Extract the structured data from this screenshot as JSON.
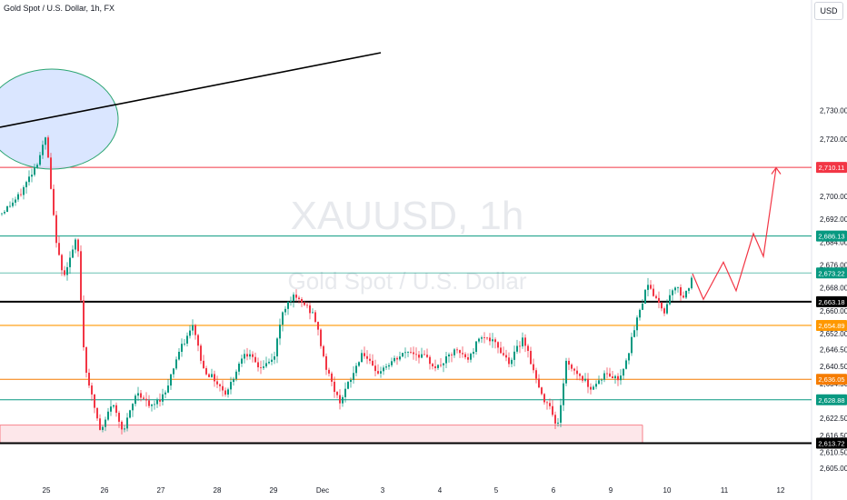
{
  "header": {
    "symbol_title": "Gold Spot / U.S. Dollar, 1h, FX",
    "currency": "USD"
  },
  "watermark": {
    "ticker": "XAUUSD, 1h",
    "name": "Gold Spot / U.S. Dollar"
  },
  "chart_data": {
    "type": "candlestick",
    "title": "Gold Spot / U.S. Dollar, 1h, FX",
    "y_axis_ticks": [
      2730,
      2720,
      2700,
      2692,
      2684,
      2676,
      2668,
      2660,
      2652,
      2646.5,
      2640.5,
      2634.5,
      2628.5,
      2622.5,
      2616.5,
      2610.5,
      2605
    ],
    "y_axis_tick_labels": [
      "2,730.00",
      "2,720.00",
      "2,700.00",
      "2,692.00",
      "2,684.00",
      "2,676.00",
      "2,668.00",
      "2,660.00",
      "2,652.00",
      "2,646.50",
      "2,640.50",
      "2,634.50",
      "2,628.50",
      "2,622.50",
      "2,616.50",
      "2,610.50",
      "2,605.00"
    ],
    "x_axis_ticks": [
      "25",
      "26",
      "27",
      "28",
      "29",
      "Dec",
      "3",
      "4",
      "5",
      "6",
      "9",
      "10",
      "11",
      "12"
    ],
    "horizontal_levels": [
      {
        "label": "2,710.11",
        "value": 2710.11,
        "color": "#f23645"
      },
      {
        "label": "2,686.13",
        "value": 2686.13,
        "color": "#089981"
      },
      {
        "label": "2,673.22",
        "value": 2673.22,
        "color": "#089981"
      },
      {
        "label": "2,663.18",
        "value": 2663.18,
        "color": "#000000"
      },
      {
        "label": "2,654.89",
        "value": 2654.89,
        "color": "#ff9800"
      },
      {
        "label": "2,636.05",
        "value": 2636.05,
        "color": "#f57c00"
      },
      {
        "label": "2,628.88",
        "value": 2628.88,
        "color": "#089981"
      },
      {
        "label": "2,613.72",
        "value": 2613.72,
        "color": "#000000"
      }
    ],
    "demand_zone": {
      "low": 2613.72,
      "high": 2620.0
    },
    "projection_path": [
      2673.0,
      2664.0,
      2677.0,
      2667.0,
      2687.0,
      2679.0,
      2710.0
    ],
    "colors": {
      "up": "#089981",
      "down": "#f23645",
      "zone_fill": "#fde7ea",
      "ellipse_fill": "#d3e2ff",
      "ellipse_stroke": "#2ba572",
      "projection": "#f23645"
    }
  }
}
